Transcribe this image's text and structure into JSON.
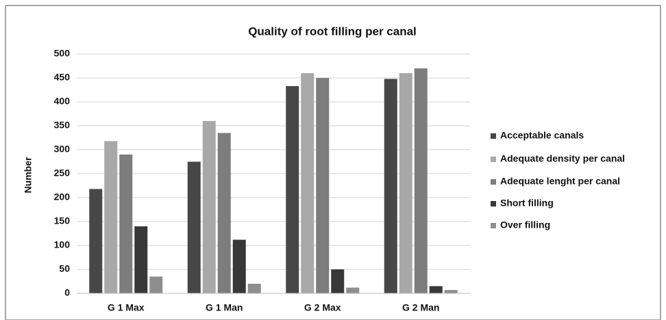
{
  "chart_data": {
    "type": "bar",
    "title": "Quality of root filling per canal",
    "y_label": "Number",
    "categories": [
      "G 1 Max",
      "G 1 Man",
      "G 2 Max",
      "G 2 Man"
    ],
    "series": [
      {
        "name": "Acceptable canals",
        "color": "#474747",
        "values": [
          218,
          275,
          433,
          448
        ]
      },
      {
        "name": "Adequate density per canal",
        "color": "#a8a8a8",
        "values": [
          318,
          360,
          460,
          460
        ]
      },
      {
        "name": "Adequate lenght per canal",
        "color": "#7d7d7d",
        "values": [
          290,
          335,
          450,
          470
        ]
      },
      {
        "name": "Short filling",
        "color": "#383838",
        "values": [
          140,
          112,
          50,
          15
        ]
      },
      {
        "name": "Over filling",
        "color": "#8e8e8e",
        "values": [
          35,
          20,
          12,
          7
        ]
      }
    ],
    "ylim": [
      0,
      500
    ],
    "yticks": [
      0,
      50,
      100,
      150,
      200,
      250,
      300,
      350,
      400,
      450,
      500
    ],
    "grid": true,
    "legend": "right"
  }
}
